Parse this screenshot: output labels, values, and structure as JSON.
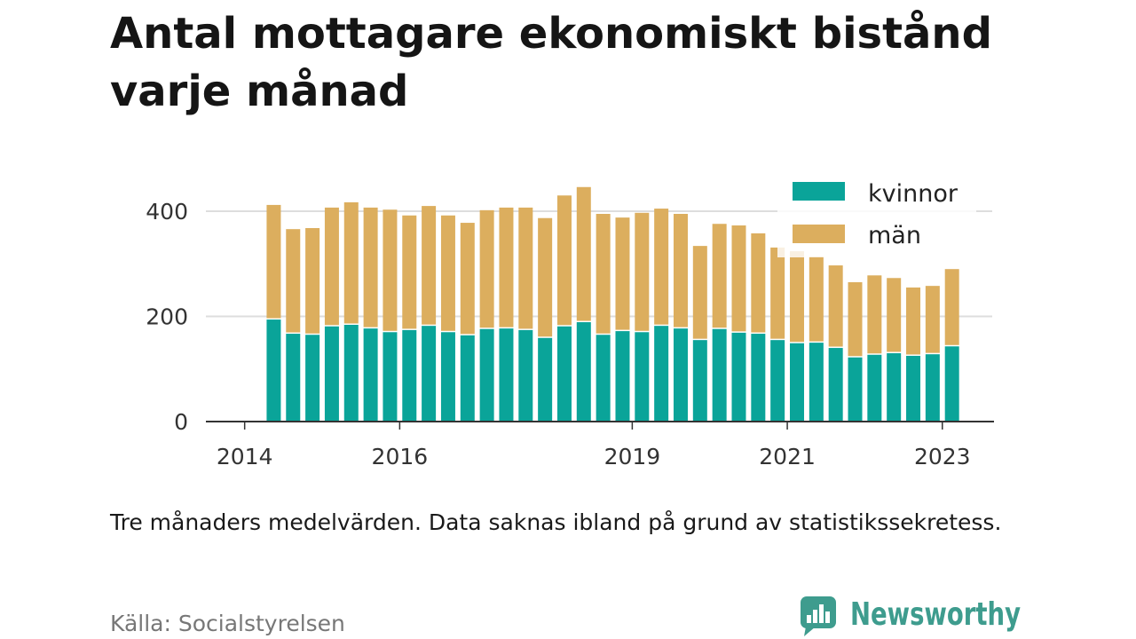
{
  "chart_data": {
    "type": "bar",
    "stacked": true,
    "title": "Antal mottagare ekonomiskt bistånd varje månad",
    "x": [
      "2014-05",
      "2014-08",
      "2014-11",
      "2015-02",
      "2015-05",
      "2015-08",
      "2015-11",
      "2016-02",
      "2016-05",
      "2016-08",
      "2016-11",
      "2017-02",
      "2017-05",
      "2017-08",
      "2017-11",
      "2018-02",
      "2018-05",
      "2018-08",
      "2018-11",
      "2019-02",
      "2019-05",
      "2019-08",
      "2019-11",
      "2020-02",
      "2020-05",
      "2020-08",
      "2020-11",
      "2021-02",
      "2021-05",
      "2021-08",
      "2021-11",
      "2022-02",
      "2022-05",
      "2022-08",
      "2022-11",
      "2023-02"
    ],
    "series": [
      {
        "name": "kvinnor",
        "color": "#0aa499",
        "values": [
          194,
          167,
          165,
          181,
          184,
          177,
          170,
          174,
          182,
          170,
          164,
          176,
          177,
          174,
          159,
          181,
          189,
          165,
          172,
          170,
          182,
          177,
          155,
          176,
          169,
          167,
          155,
          149,
          150,
          140,
          122,
          127,
          130,
          125,
          128,
          143
        ]
      },
      {
        "name": "män",
        "color": "#dcae5e",
        "values": [
          218,
          199,
          203,
          226,
          233,
          230,
          233,
          218,
          228,
          222,
          214,
          226,
          230,
          233,
          228,
          249,
          257,
          230,
          216,
          227,
          223,
          218,
          179,
          200,
          204,
          191,
          176,
          175,
          164,
          157,
          143,
          151,
          143,
          130,
          130,
          147
        ]
      }
    ],
    "xticks": [
      "2014",
      "2016",
      "2019",
      "2021",
      "2023"
    ],
    "yticks": [
      0,
      200,
      400
    ],
    "xlim": [
      "2013-07",
      "2023-09"
    ],
    "ylim": [
      0,
      450
    ],
    "grid": {
      "y": true,
      "x": false
    },
    "legend": {
      "position": "top-right"
    }
  },
  "note": "Tre månaders medelvärden. Data saknas ibland på grund av statistikssekretess.",
  "source": "Källa: Socialstyrelsen",
  "logo": {
    "text": "Newsworthy",
    "color": "#3e9c8e",
    "icon": "chart-bubble-icon"
  }
}
